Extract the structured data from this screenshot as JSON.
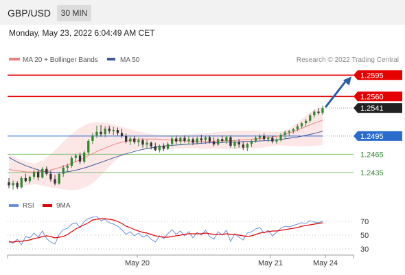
{
  "header": {
    "symbol": "GBP/USD",
    "timeframe": "30 MIN"
  },
  "timestamp": "Monday, May 23, 2022 6:04:49 AM CET",
  "credit": "Research © 2022 Trading Central",
  "colors": {
    "resistance": "#e60000",
    "support_line": "#2a6ccc",
    "support_green": "#7bbf6a",
    "bollinger_fill": "#fde3e3",
    "ma20": "#f08080",
    "ma50": "#3a5a9c",
    "candle_up": "#2e8b2e",
    "candle_down": "#333333",
    "rsi": "#6a8ee0",
    "rsi_ma": "#e00000",
    "arrow": "#2a5caa"
  },
  "chart_data": [
    {
      "type": "candlestick",
      "title": "GBP/USD",
      "timeframe": "30 MIN",
      "legend": [
        {
          "name": "MA 20 + Bollinger Bands",
          "color": "#f08080"
        },
        {
          "name": "MA 50",
          "color": "#3a5a9c"
        }
      ],
      "x_ticks": [
        "May 20",
        "May 21",
        "May 24"
      ],
      "ylim": [
        1.24,
        1.261
      ],
      "candles": [
        [
          1.2419,
          1.2426,
          1.2409,
          1.2414
        ],
        [
          1.2414,
          1.2422,
          1.2407,
          1.2418
        ],
        [
          1.2418,
          1.2421,
          1.2408,
          1.2411
        ],
        [
          1.2411,
          1.2429,
          1.2409,
          1.2426
        ],
        [
          1.2426,
          1.2433,
          1.2419,
          1.2421
        ],
        [
          1.2421,
          1.243,
          1.2417,
          1.2428
        ],
        [
          1.2428,
          1.244,
          1.2424,
          1.2436
        ],
        [
          1.2436,
          1.2439,
          1.2422,
          1.2427
        ],
        [
          1.2427,
          1.2444,
          1.2425,
          1.2441
        ],
        [
          1.2441,
          1.2445,
          1.243,
          1.2433
        ],
        [
          1.2433,
          1.2438,
          1.242,
          1.2424
        ],
        [
          1.2424,
          1.2431,
          1.2414,
          1.2417
        ],
        [
          1.2417,
          1.2436,
          1.2415,
          1.2433
        ],
        [
          1.2433,
          1.2447,
          1.2428,
          1.2443
        ],
        [
          1.2443,
          1.245,
          1.2437,
          1.2446
        ],
        [
          1.2446,
          1.2462,
          1.2443,
          1.2459
        ],
        [
          1.2459,
          1.2466,
          1.2452,
          1.2463
        ],
        [
          1.2463,
          1.2468,
          1.2449,
          1.2453
        ],
        [
          1.2453,
          1.2471,
          1.245,
          1.2468
        ],
        [
          1.2468,
          1.249,
          1.2465,
          1.2487
        ],
        [
          1.2487,
          1.25,
          1.2482,
          1.2496
        ],
        [
          1.2496,
          1.2512,
          1.2492,
          1.2502
        ],
        [
          1.2502,
          1.2513,
          1.2494,
          1.2498
        ],
        [
          1.2498,
          1.2511,
          1.2493,
          1.2507
        ],
        [
          1.2507,
          1.2512,
          1.2499,
          1.2503
        ],
        [
          1.2503,
          1.251,
          1.2497,
          1.2505
        ],
        [
          1.2505,
          1.2509,
          1.2496,
          1.25
        ],
        [
          1.25,
          1.2507,
          1.2492,
          1.2495
        ],
        [
          1.2495,
          1.2499,
          1.2483,
          1.2486
        ],
        [
          1.2486,
          1.2494,
          1.248,
          1.2491
        ],
        [
          1.2491,
          1.2495,
          1.2482,
          1.2485
        ],
        [
          1.2485,
          1.2492,
          1.2478,
          1.2488
        ],
        [
          1.2488,
          1.2491,
          1.2476,
          1.2481
        ],
        [
          1.2481,
          1.2489,
          1.2475,
          1.2484
        ],
        [
          1.2484,
          1.2486,
          1.2473,
          1.2478
        ],
        [
          1.2478,
          1.2484,
          1.247,
          1.2472
        ],
        [
          1.2472,
          1.2481,
          1.2468,
          1.2479
        ],
        [
          1.2479,
          1.2483,
          1.247,
          1.2474
        ],
        [
          1.2474,
          1.2485,
          1.2472,
          1.2482
        ],
        [
          1.2482,
          1.2495,
          1.2478,
          1.2491
        ],
        [
          1.2491,
          1.2496,
          1.2482,
          1.2486
        ],
        [
          1.2486,
          1.2494,
          1.248,
          1.2492
        ],
        [
          1.2492,
          1.2496,
          1.2484,
          1.2487
        ],
        [
          1.2487,
          1.2495,
          1.2481,
          1.249
        ],
        [
          1.249,
          1.2493,
          1.248,
          1.2484
        ],
        [
          1.2484,
          1.2494,
          1.2481,
          1.2491
        ],
        [
          1.2491,
          1.2497,
          1.2484,
          1.2488
        ],
        [
          1.2488,
          1.2495,
          1.2482,
          1.2493
        ],
        [
          1.2493,
          1.2496,
          1.2483,
          1.2486
        ],
        [
          1.2486,
          1.2493,
          1.2478,
          1.2481
        ],
        [
          1.2481,
          1.2492,
          1.2479,
          1.249
        ],
        [
          1.249,
          1.2496,
          1.2484,
          1.2487
        ],
        [
          1.2487,
          1.2495,
          1.2482,
          1.2493
        ],
        [
          1.2493,
          1.2496,
          1.2476,
          1.2479
        ],
        [
          1.2479,
          1.2488,
          1.2474,
          1.2485
        ],
        [
          1.2485,
          1.249,
          1.2476,
          1.2481
        ],
        [
          1.2481,
          1.2486,
          1.2472,
          1.2476
        ],
        [
          1.2476,
          1.2484,
          1.247,
          1.2482
        ],
        [
          1.2482,
          1.2489,
          1.2477,
          1.2487
        ],
        [
          1.2487,
          1.2496,
          1.2484,
          1.2492
        ],
        [
          1.2492,
          1.2498,
          1.2487,
          1.2495
        ],
        [
          1.2495,
          1.2499,
          1.2488,
          1.249
        ],
        [
          1.249,
          1.2495,
          1.2485,
          1.2492
        ],
        [
          1.2492,
          1.2495,
          1.2483,
          1.2486
        ],
        [
          1.2486,
          1.2493,
          1.2482,
          1.2488
        ],
        [
          1.2488,
          1.25,
          1.2486,
          1.2497
        ],
        [
          1.2497,
          1.2504,
          1.2491,
          1.2501
        ],
        [
          1.2501,
          1.2505,
          1.2495,
          1.2503
        ],
        [
          1.2503,
          1.2508,
          1.2499,
          1.2506
        ],
        [
          1.2506,
          1.2514,
          1.2503,
          1.2511
        ],
        [
          1.2511,
          1.2518,
          1.2508,
          1.2516
        ],
        [
          1.2516,
          1.2523,
          1.2511,
          1.252
        ],
        [
          1.252,
          1.2532,
          1.2517,
          1.2529
        ],
        [
          1.2529,
          1.2538,
          1.2525,
          1.2535
        ],
        [
          1.2535,
          1.2541,
          1.253,
          1.2533
        ],
        [
          1.2533,
          1.2545,
          1.253,
          1.2541
        ]
      ],
      "ma20": [
        1.244,
        1.2438,
        1.2436,
        1.2436,
        1.2437,
        1.244,
        1.2444,
        1.2449,
        1.2455,
        1.2462,
        1.2469,
        1.2475,
        1.2481,
        1.2485,
        1.2488,
        1.249,
        1.249,
        1.249,
        1.2489,
        1.2488,
        1.2487,
        1.2486,
        1.2486,
        1.2486,
        1.2487,
        1.2487,
        1.2488,
        1.2489,
        1.249,
        1.2491,
        1.2493,
        1.2495,
        1.2499,
        1.2504,
        1.251,
        1.2516,
        1.2521
      ],
      "ma50": [
        1.246,
        1.2452,
        1.2446,
        1.2441,
        1.2437,
        1.2435,
        1.2435,
        1.2437,
        1.244,
        1.2444,
        1.2449,
        1.2454,
        1.2459,
        1.2464,
        1.2468,
        1.2472,
        1.2475,
        1.2477,
        1.2479,
        1.248,
        1.2481,
        1.2482,
        1.2483,
        1.2484,
        1.2484,
        1.2485,
        1.2485,
        1.2486,
        1.2486,
        1.2487,
        1.2488,
        1.2489,
        1.2491,
        1.2493,
        1.2496,
        1.2499,
        1.2503
      ],
      "bb_upper": [
        1.2465,
        1.2458,
        1.2452,
        1.245,
        1.2456,
        1.2468,
        1.2482,
        1.2496,
        1.2507,
        1.2515,
        1.2518,
        1.2517,
        1.2514,
        1.251,
        1.2506,
        1.2502,
        1.2499,
        1.2497,
        1.2496,
        1.2496,
        1.2497,
        1.2498,
        1.2499,
        1.25,
        1.2502,
        1.2503,
        1.2504,
        1.2504,
        1.2504,
        1.2503,
        1.2502,
        1.2502,
        1.2506,
        1.2515,
        1.2528,
        1.2538,
        1.2544
      ],
      "bb_lower": [
        1.2415,
        1.2414,
        1.2414,
        1.2416,
        1.2413,
        1.241,
        1.2408,
        1.2406,
        1.2407,
        1.2412,
        1.2422,
        1.2437,
        1.2452,
        1.2463,
        1.247,
        1.2474,
        1.2474,
        1.2473,
        1.2473,
        1.2474,
        1.2475,
        1.2475,
        1.2474,
        1.2474,
        1.2474,
        1.2474,
        1.2474,
        1.2474,
        1.2475,
        1.2476,
        1.2478,
        1.248,
        1.2479,
        1.2478,
        1.2478,
        1.2479,
        1.248
      ],
      "levels": [
        {
          "value": 1.2595,
          "label": "1.2595",
          "kind": "resistance"
        },
        {
          "value": 1.256,
          "label": "1.2560",
          "kind": "resistance"
        },
        {
          "value": 1.2541,
          "label": "1.2541",
          "kind": "last_price"
        },
        {
          "value": 1.2495,
          "label": "1.2495",
          "kind": "support"
        },
        {
          "value": 1.2465,
          "label": "1.2465",
          "kind": "support_green"
        },
        {
          "value": 1.2435,
          "label": "1.2435",
          "kind": "support_green"
        }
      ]
    },
    {
      "type": "line",
      "title": "",
      "legend": [
        {
          "name": "RSI",
          "color": "#6a8ee0"
        },
        {
          "name": "9MA",
          "color": "#e00000"
        }
      ],
      "ylim": [
        20,
        80
      ],
      "yticks": [
        70,
        50,
        30
      ],
      "rsi": [
        42,
        38,
        44,
        36,
        48,
        46,
        53,
        47,
        56,
        45,
        40,
        37,
        51,
        58,
        60,
        66,
        68,
        61,
        70,
        74,
        76,
        77,
        71,
        73,
        68,
        66,
        63,
        58,
        51,
        55,
        49,
        53,
        47,
        50,
        44,
        40,
        49,
        45,
        52,
        58,
        51,
        56,
        49,
        55,
        46,
        54,
        50,
        57,
        48,
        44,
        55,
        50,
        57,
        41,
        52,
        47,
        43,
        53,
        55,
        59,
        61,
        53,
        57,
        49,
        54,
        60,
        63,
        62,
        64,
        66,
        68,
        67,
        71,
        69,
        68,
        70
      ],
      "rsi_ma": [
        40,
        40,
        41,
        41,
        42,
        43,
        45,
        46,
        48,
        49,
        48,
        46,
        47,
        48,
        51,
        55,
        59,
        62,
        65,
        68,
        72,
        73,
        74,
        74,
        73,
        72,
        70,
        67,
        63,
        61,
        58,
        56,
        54,
        53,
        51,
        49,
        48,
        47,
        47,
        48,
        49,
        50,
        51,
        52,
        52,
        52,
        52,
        53,
        52,
        51,
        51,
        51,
        52,
        51,
        51,
        50,
        49,
        48,
        49,
        51,
        53,
        54,
        55,
        56,
        56,
        57,
        58,
        59,
        60,
        61,
        63,
        64,
        65,
        66,
        67,
        68
      ]
    }
  ]
}
